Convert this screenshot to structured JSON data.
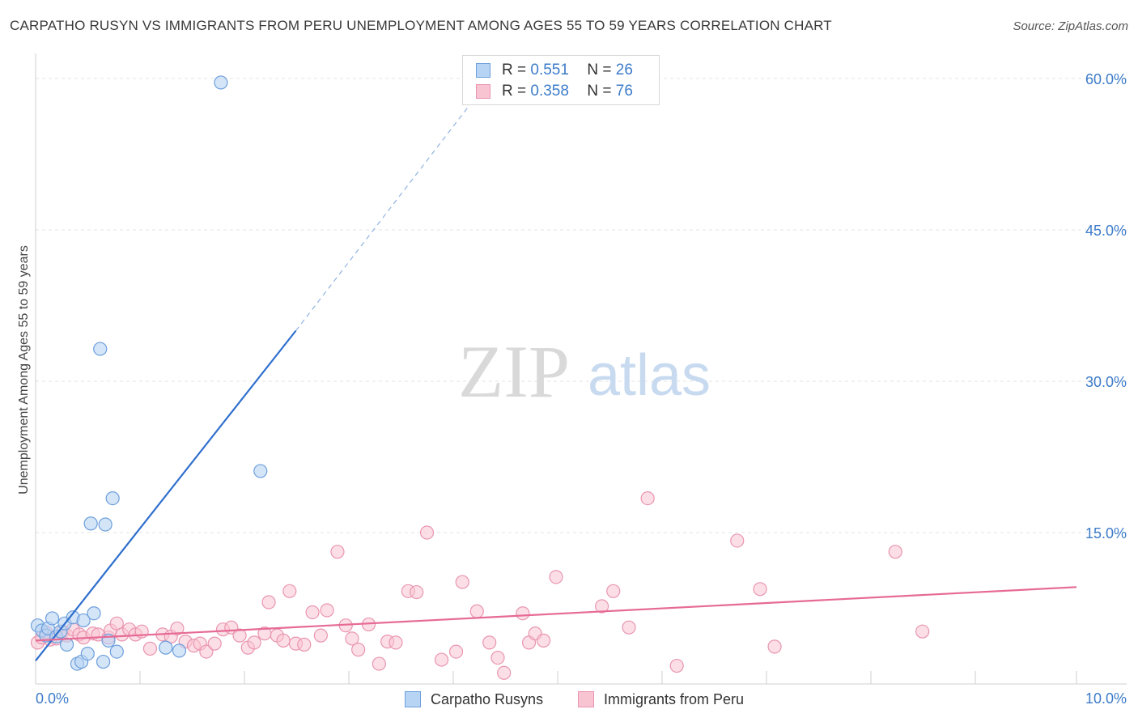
{
  "header": {
    "title": "CARPATHO RUSYN VS IMMIGRANTS FROM PERU UNEMPLOYMENT AMONG AGES 55 TO 59 YEARS CORRELATION CHART",
    "source": "Source: ZipAtlas.com"
  },
  "watermark": {
    "zip": "ZIP",
    "atlas": "atlas"
  },
  "legend": {
    "r_label": "R =",
    "n_label": "N =",
    "series": [
      {
        "name": "Carpatho Rusyns",
        "r": "0.551",
        "n": "26"
      },
      {
        "name": "Immigrants from Peru",
        "r": "0.358",
        "n": "76"
      }
    ]
  },
  "colors": {
    "blue_fill": "#b8d4f4",
    "blue_stroke": "#6d9fdc",
    "blue_line": "#2f6fcd",
    "pink_fill": "#f9c4d2",
    "pink_stroke": "#e995b0",
    "pink_line": "#e66a95",
    "tick_label": "#3d7cc9",
    "grid": "#e3e3e3"
  },
  "chart_data": {
    "type": "scatter",
    "title": "CARPATHO RUSYN VS IMMIGRANTS FROM PERU UNEMPLOYMENT AMONG AGES 55 TO 59 YEARS CORRELATION CHART",
    "xlabel": "",
    "ylabel": "Unemployment Among Ages 55 to 59 years",
    "xlim": [
      0,
      10
    ],
    "ylim": [
      0,
      62
    ],
    "x_tick_labels": [
      "0.0%",
      "10.0%"
    ],
    "y_ticks": [
      15,
      30,
      45,
      60
    ],
    "y_tick_labels": [
      "15.0%",
      "30.0%",
      "45.0%",
      "60.0%"
    ],
    "series": [
      {
        "name": "Carpatho Rusyns",
        "points": [
          [
            0.02,
            5.8
          ],
          [
            0.06,
            5.3
          ],
          [
            0.1,
            4.8
          ],
          [
            0.12,
            5.5
          ],
          [
            0.16,
            6.5
          ],
          [
            0.2,
            4.7
          ],
          [
            0.24,
            5.2
          ],
          [
            0.28,
            6.0
          ],
          [
            0.3,
            3.9
          ],
          [
            0.36,
            6.6
          ],
          [
            0.4,
            2.0
          ],
          [
            0.44,
            2.2
          ],
          [
            0.46,
            6.3
          ],
          [
            0.5,
            3.0
          ],
          [
            0.56,
            7.0
          ],
          [
            0.62,
            33.2
          ],
          [
            0.65,
            2.2
          ],
          [
            0.67,
            15.8
          ],
          [
            0.7,
            4.3
          ],
          [
            0.74,
            18.4
          ],
          [
            0.78,
            3.2
          ],
          [
            0.53,
            15.9
          ],
          [
            1.25,
            3.6
          ],
          [
            1.38,
            3.3
          ],
          [
            1.78,
            59.6
          ],
          [
            2.16,
            21.1
          ]
        ],
        "trend": {
          "x0": 0.0,
          "y0": 2.3,
          "x1": 2.5,
          "y1": 35.0,
          "dashed_to_x": 4.18,
          "dashed_to_y": 57.5
        }
      },
      {
        "name": "Immigrants from Peru",
        "points": [
          [
            0.02,
            4.1
          ],
          [
            0.06,
            4.6
          ],
          [
            0.1,
            5.1
          ],
          [
            0.14,
            4.4
          ],
          [
            0.2,
            4.5
          ],
          [
            0.26,
            5.2
          ],
          [
            0.3,
            4.8
          ],
          [
            0.36,
            5.4
          ],
          [
            0.42,
            4.9
          ],
          [
            0.46,
            4.6
          ],
          [
            0.55,
            5.0
          ],
          [
            0.6,
            4.9
          ],
          [
            0.7,
            4.6
          ],
          [
            0.72,
            5.3
          ],
          [
            0.78,
            6.0
          ],
          [
            0.83,
            4.9
          ],
          [
            0.9,
            5.4
          ],
          [
            0.96,
            4.9
          ],
          [
            1.02,
            5.2
          ],
          [
            1.1,
            3.5
          ],
          [
            1.22,
            4.9
          ],
          [
            1.3,
            4.7
          ],
          [
            1.36,
            5.5
          ],
          [
            1.44,
            4.2
          ],
          [
            1.52,
            3.8
          ],
          [
            1.58,
            4.0
          ],
          [
            1.64,
            3.2
          ],
          [
            1.72,
            4.0
          ],
          [
            1.8,
            5.4
          ],
          [
            1.88,
            5.6
          ],
          [
            1.96,
            4.8
          ],
          [
            2.04,
            3.6
          ],
          [
            2.1,
            4.1
          ],
          [
            2.2,
            5.0
          ],
          [
            2.24,
            8.1
          ],
          [
            2.32,
            4.8
          ],
          [
            2.38,
            4.3
          ],
          [
            2.44,
            9.2
          ],
          [
            2.5,
            4.0
          ],
          [
            2.58,
            3.9
          ],
          [
            2.66,
            7.1
          ],
          [
            2.74,
            4.8
          ],
          [
            2.8,
            7.3
          ],
          [
            2.9,
            13.1
          ],
          [
            2.98,
            5.8
          ],
          [
            3.04,
            4.5
          ],
          [
            3.1,
            3.4
          ],
          [
            3.2,
            5.9
          ],
          [
            3.3,
            2.0
          ],
          [
            3.38,
            4.2
          ],
          [
            3.46,
            4.1
          ],
          [
            3.58,
            9.2
          ],
          [
            3.66,
            9.1
          ],
          [
            3.76,
            15.0
          ],
          [
            3.9,
            2.4
          ],
          [
            4.04,
            3.2
          ],
          [
            4.1,
            10.1
          ],
          [
            4.24,
            7.2
          ],
          [
            4.36,
            4.1
          ],
          [
            4.44,
            2.6
          ],
          [
            4.5,
            1.1
          ],
          [
            4.68,
            7.0
          ],
          [
            4.74,
            4.1
          ],
          [
            4.8,
            5.0
          ],
          [
            4.88,
            4.3
          ],
          [
            5.0,
            10.6
          ],
          [
            5.44,
            7.7
          ],
          [
            5.55,
            9.2
          ],
          [
            5.7,
            5.6
          ],
          [
            5.88,
            18.4
          ],
          [
            6.16,
            1.8
          ],
          [
            6.74,
            14.2
          ],
          [
            6.96,
            9.4
          ],
          [
            7.1,
            3.7
          ],
          [
            8.26,
            13.1
          ],
          [
            8.52,
            5.2
          ]
        ],
        "trend": {
          "x0": 0.0,
          "y0": 4.3,
          "x1": 10.0,
          "y1": 9.6
        }
      }
    ]
  }
}
